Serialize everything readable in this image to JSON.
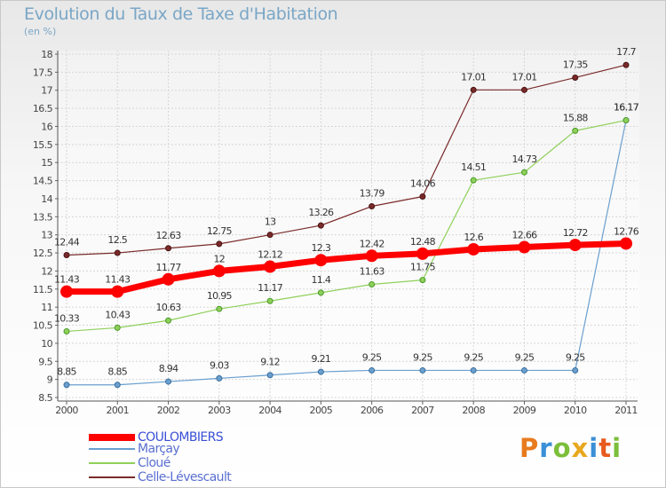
{
  "header": {
    "title": "Evolution du Taux de Taxe d'Habitation",
    "subtitle": "(en %)"
  },
  "logo": {
    "letters": [
      "P",
      "r",
      "o",
      "x",
      "i",
      "t",
      "i"
    ],
    "colors": [
      "#e87b1e",
      "#3a8fd6",
      "#7bbf3a",
      "#e8a81e",
      "#3a8fd6",
      "#e85a1e",
      "#7bbf3a"
    ]
  },
  "chart_data": {
    "type": "line",
    "title": "Evolution du Taux de Taxe d'Habitation",
    "ylabel": "(en %)",
    "xlabel": "",
    "x": [
      "2000",
      "2001",
      "2002",
      "2003",
      "2004",
      "2005",
      "2006",
      "2007",
      "2008",
      "2009",
      "2010",
      "2011"
    ],
    "ylim": [
      8.5,
      18
    ],
    "yticks": [
      "8.5",
      "9",
      "9.5",
      "10",
      "10.5",
      "11",
      "11.5",
      "12",
      "12.5",
      "13",
      "13.5",
      "14",
      "14.5",
      "15",
      "15.5",
      "16",
      "16.5",
      "17",
      "17.5",
      "18"
    ],
    "grid": true,
    "legend_position": "bottom-left",
    "series": [
      {
        "name": "COULOMBIERS",
        "color": "#ff0000",
        "values": [
          11.43,
          11.43,
          11.77,
          12,
          12.12,
          12.3,
          12.42,
          12.48,
          12.6,
          12.66,
          12.72,
          12.76
        ],
        "labels": [
          "11.43",
          "11.43",
          "11.77",
          "12",
          "12.12",
          "12.3",
          "12.42",
          "12.48",
          "12.6",
          "12.66",
          "12.72",
          "12.76"
        ]
      },
      {
        "name": "Marçay",
        "color": "#6a9fce",
        "values": [
          8.85,
          8.85,
          8.94,
          9.03,
          9.12,
          9.21,
          9.25,
          9.25,
          9.25,
          9.25,
          9.25,
          16.17
        ],
        "labels": [
          "8.85",
          "8.85",
          "8.94",
          "9.03",
          "9.12",
          "9.21",
          "9.25",
          "9.25",
          "9.25",
          "9.25",
          "9.25",
          "16.17"
        ]
      },
      {
        "name": "Cloué",
        "color": "#8fd05a",
        "values": [
          10.33,
          10.43,
          10.63,
          10.95,
          11.17,
          11.4,
          11.63,
          11.75,
          14.51,
          14.73,
          15.88,
          16.17
        ],
        "labels": [
          "10.33",
          "10.43",
          "10.63",
          "10.95",
          "11.17",
          "11.4",
          "11.63",
          "11.75",
          "14.51",
          "14.73",
          "15.88",
          "16.17"
        ]
      },
      {
        "name": "Celle-Lévescault",
        "color": "#7a2a2a",
        "values": [
          12.44,
          12.5,
          12.63,
          12.75,
          13,
          13.26,
          13.79,
          14.06,
          17.01,
          17.01,
          17.35,
          17.7
        ],
        "labels": [
          "12.44",
          "12.5",
          "12.63",
          "12.75",
          "13",
          "13.26",
          "13.79",
          "14.06",
          "17.01",
          "17.01",
          "17.35",
          "17.7"
        ]
      }
    ]
  }
}
